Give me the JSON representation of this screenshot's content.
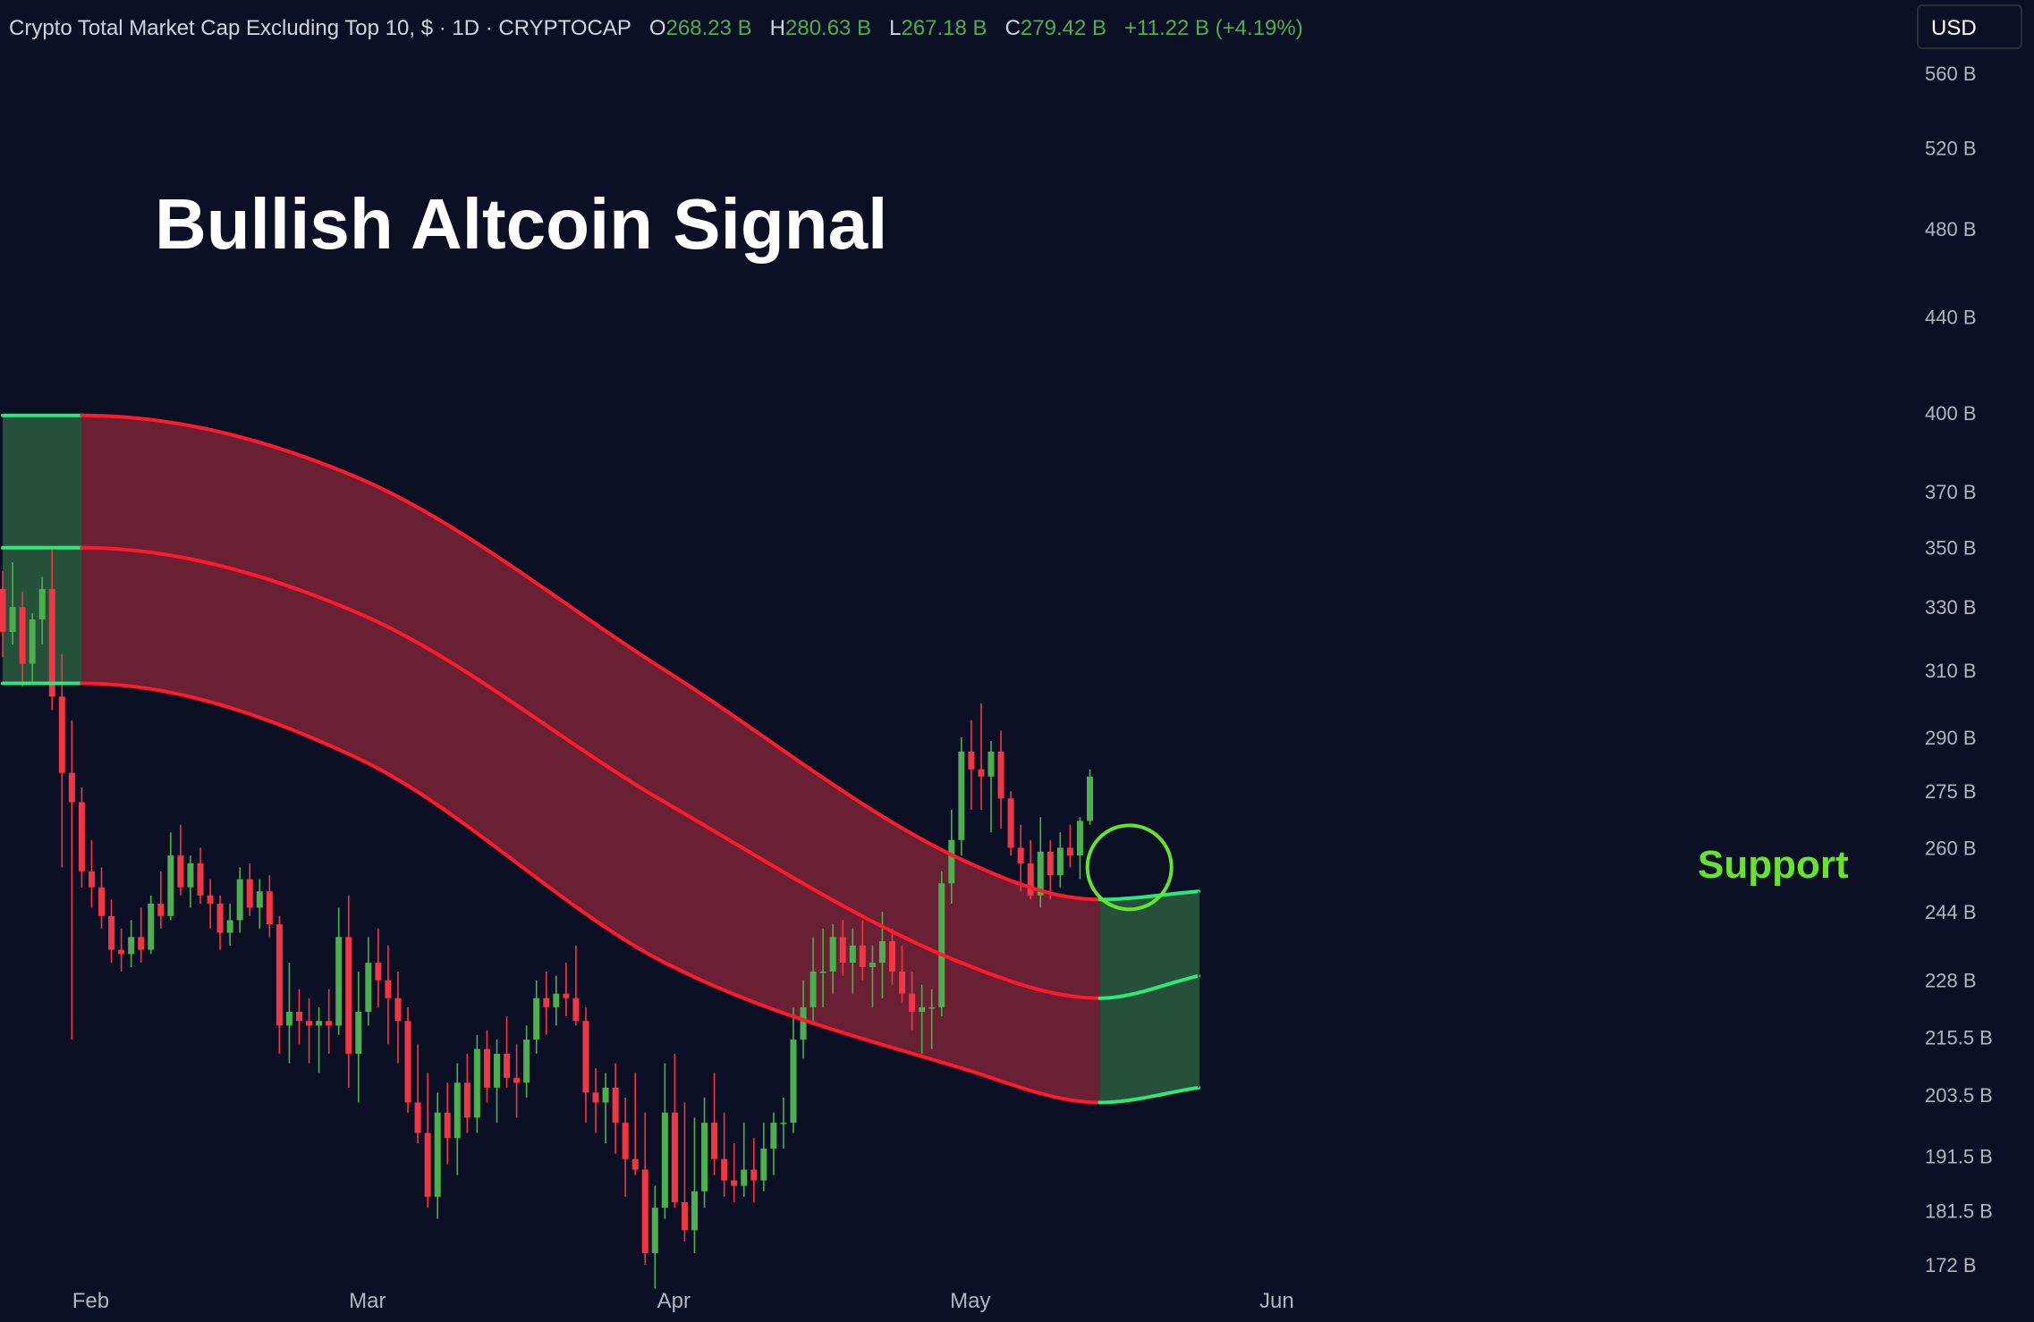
{
  "header": {
    "symbol_title": "Crypto Total Market Cap Excluding Top 10, $ · 1D · CRYPTOCAP",
    "open_label": "O",
    "open_value": "268.23 B",
    "high_label": "H",
    "high_value": "280.63 B",
    "low_label": "L",
    "low_value": "267.18 B",
    "close_label": "C",
    "close_value": "279.42 B",
    "change": "+11.22 B (+4.19%)"
  },
  "currency": "USD",
  "headline": "Bullish Altcoin Signal",
  "annotation": "Support",
  "colors": {
    "background": "#0a0f24",
    "up": "#4caf50",
    "down": "#f23645",
    "band_bear_line": "#ff1a2e",
    "band_bear_fill": "#6a2033",
    "band_bull_line": "#2ee87a",
    "band_bull_fill": "#25513a",
    "support": "#66e32b",
    "axis_text": "#b2b5be"
  },
  "chart_data": {
    "type": "candlestick",
    "scale": "log",
    "ylim": [
      172,
      560
    ],
    "y_ticks": [
      "560 B",
      "520 B",
      "480 B",
      "440 B",
      "400 B",
      "370 B",
      "350 B",
      "330 B",
      "310 B",
      "290 B",
      "275 B",
      "260 B",
      "244 B",
      "228 B",
      "215.5 B",
      "203.5 B",
      "191.5 B",
      "181.5 B",
      "172 B"
    ],
    "x_ticks": [
      "Feb",
      "Mar",
      "Apr",
      "May",
      "Jun"
    ],
    "x_range": [
      "2025-01-24",
      "2025-06-06"
    ],
    "series": [
      {
        "start": "2025-01-24",
        "candles": [
          [
            336,
            342,
            314,
            322
          ],
          [
            322,
            345,
            318,
            330
          ],
          [
            330,
            335,
            305,
            312
          ],
          [
            312,
            328,
            306,
            326
          ],
          [
            326,
            340,
            318,
            336
          ],
          [
            336,
            350,
            298,
            302
          ],
          [
            302,
            315,
            255,
            280
          ],
          [
            280,
            295,
            215,
            272
          ],
          [
            272,
            276,
            250,
            254
          ],
          [
            254,
            262,
            245,
            250
          ],
          [
            250,
            255,
            240,
            243
          ],
          [
            243,
            247,
            232,
            235
          ],
          [
            235,
            240,
            230,
            234
          ],
          [
            234,
            242,
            231,
            238
          ],
          [
            238,
            245,
            232,
            235
          ],
          [
            235,
            248,
            234,
            246
          ],
          [
            246,
            254,
            240,
            243
          ],
          [
            243,
            264,
            242,
            258
          ],
          [
            258,
            266,
            248,
            250
          ],
          [
            250,
            258,
            245,
            256
          ],
          [
            256,
            260,
            246,
            248
          ],
          [
            248,
            252,
            240,
            246
          ],
          [
            246,
            248,
            235,
            239
          ],
          [
            239,
            246,
            236,
            242
          ],
          [
            242,
            255,
            239,
            252
          ],
          [
            252,
            256,
            243,
            245
          ],
          [
            245,
            252,
            240,
            249
          ],
          [
            249,
            253,
            238,
            241
          ],
          [
            241,
            243,
            212,
            218
          ],
          [
            218,
            232,
            210,
            221
          ],
          [
            221,
            226,
            214,
            219
          ],
          [
            219,
            224,
            210,
            218
          ],
          [
            218,
            222,
            208,
            219
          ],
          [
            219,
            226,
            212,
            218
          ],
          [
            218,
            245,
            216,
            238
          ],
          [
            238,
            248,
            205,
            212
          ],
          [
            212,
            230,
            202,
            221
          ],
          [
            221,
            238,
            218,
            232
          ],
          [
            232,
            240,
            222,
            228
          ],
          [
            228,
            236,
            214,
            224
          ],
          [
            224,
            230,
            210,
            219
          ],
          [
            219,
            222,
            200,
            202
          ],
          [
            202,
            214,
            194,
            196
          ],
          [
            196,
            208,
            182,
            184
          ],
          [
            184,
            204,
            180,
            200
          ],
          [
            200,
            206,
            190,
            195
          ],
          [
            195,
            210,
            188,
            206
          ],
          [
            206,
            212,
            196,
            199
          ],
          [
            199,
            216,
            196,
            213
          ],
          [
            213,
            217,
            202,
            205
          ],
          [
            205,
            215,
            198,
            212
          ],
          [
            212,
            220,
            205,
            207
          ],
          [
            207,
            214,
            199,
            206
          ],
          [
            206,
            218,
            203,
            215
          ],
          [
            215,
            228,
            212,
            224
          ],
          [
            224,
            230,
            216,
            222
          ],
          [
            222,
            229,
            218,
            225
          ],
          [
            225,
            232,
            220,
            224
          ],
          [
            224,
            236,
            218,
            219
          ],
          [
            219,
            222,
            198,
            204
          ],
          [
            204,
            209,
            196,
            202
          ],
          [
            202,
            208,
            194,
            205
          ],
          [
            205,
            210,
            192,
            198
          ],
          [
            198,
            203,
            184,
            191
          ],
          [
            191,
            208,
            188,
            189
          ],
          [
            189,
            200,
            172,
            174
          ],
          [
            174,
            186,
            168,
            182
          ],
          [
            182,
            210,
            180,
            200
          ],
          [
            200,
            212,
            182,
            183
          ],
          [
            183,
            202,
            176,
            178
          ],
          [
            178,
            199,
            174,
            185
          ],
          [
            185,
            203,
            182,
            198
          ],
          [
            198,
            208,
            188,
            191
          ],
          [
            191,
            200,
            184,
            187
          ],
          [
            187,
            194,
            183,
            186
          ],
          [
            186,
            198,
            184,
            189
          ],
          [
            189,
            195,
            183,
            187
          ],
          [
            187,
            198,
            185,
            193
          ],
          [
            193,
            200,
            188,
            198
          ],
          [
            198,
            203,
            193,
            198
          ],
          [
            198,
            222,
            196,
            215
          ],
          [
            215,
            228,
            211,
            222
          ],
          [
            222,
            238,
            219,
            230
          ],
          [
            230,
            240,
            222,
            230
          ],
          [
            230,
            241,
            225,
            238
          ],
          [
            238,
            242,
            229,
            232
          ],
          [
            232,
            240,
            225,
            236
          ],
          [
            236,
            242,
            228,
            231
          ],
          [
            231,
            236,
            222,
            232
          ],
          [
            232,
            244,
            224,
            237
          ],
          [
            237,
            240,
            227,
            230
          ],
          [
            230,
            236,
            223,
            225
          ],
          [
            225,
            230,
            217,
            221
          ],
          [
            221,
            227,
            212,
            222
          ],
          [
            222,
            226,
            213,
            222
          ],
          [
            222,
            254,
            220,
            251
          ],
          [
            251,
            270,
            246,
            262
          ],
          [
            262,
            290,
            258,
            286
          ],
          [
            286,
            295,
            270,
            281
          ],
          [
            281,
            300,
            270,
            279
          ],
          [
            279,
            289,
            264,
            286
          ],
          [
            286,
            292,
            265,
            273
          ],
          [
            273,
            275,
            258,
            260
          ],
          [
            260,
            266,
            249,
            256
          ],
          [
            256,
            262,
            247,
            248
          ],
          [
            248,
            268,
            245,
            259
          ],
          [
            259,
            262,
            247,
            253
          ],
          [
            253,
            264,
            250,
            260
          ],
          [
            260,
            266,
            255,
            258
          ],
          [
            258,
            268,
            252,
            267
          ],
          [
            267,
            281,
            266,
            279
          ]
        ]
      },
      {
        "name": "band_upper",
        "points": [
          [
            "2025-01-24",
            399
          ],
          [
            "2025-02-01",
            399
          ],
          [
            "2025-03-01",
            375
          ],
          [
            "2025-04-01",
            310
          ],
          [
            "2025-05-01",
            257
          ],
          [
            "2025-05-15",
            247
          ],
          [
            "2025-05-25",
            249
          ]
        ]
      },
      {
        "name": "band_middle",
        "points": [
          [
            "2025-01-24",
            350
          ],
          [
            "2025-02-01",
            350
          ],
          [
            "2025-03-01",
            328
          ],
          [
            "2025-04-01",
            272
          ],
          [
            "2025-05-01",
            232
          ],
          [
            "2025-05-15",
            224
          ],
          [
            "2025-05-25",
            229
          ]
        ]
      },
      {
        "name": "band_lower",
        "points": [
          [
            "2025-01-24",
            306
          ],
          [
            "2025-02-01",
            306
          ],
          [
            "2025-03-01",
            284
          ],
          [
            "2025-04-01",
            232
          ],
          [
            "2025-05-01",
            209
          ],
          [
            "2025-05-15",
            202
          ],
          [
            "2025-05-25",
            205
          ]
        ]
      },
      {
        "name": "bull_zones",
        "ranges": [
          [
            "2025-01-24",
            "2025-02-01"
          ],
          [
            "2025-05-15",
            "2025-05-25"
          ]
        ]
      }
    ]
  }
}
